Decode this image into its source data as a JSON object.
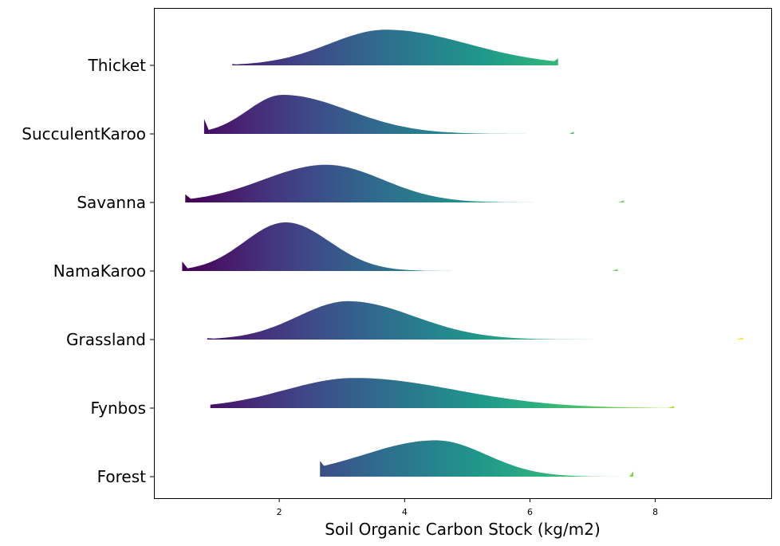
{
  "chart_data": {
    "type": "ridgeline",
    "xlabel": "Soil Organic Carbon Stock (kg/m2)",
    "ylabel": "",
    "title": "",
    "xlim": [
      0.0,
      9.85
    ],
    "xticks": [
      2,
      4,
      6,
      8
    ],
    "grid": false,
    "colormap": "viridis",
    "color_range": [
      0.5,
      9.4
    ],
    "series": [
      {
        "name": "Thicket",
        "x_range": [
          1.25,
          6.45
        ],
        "peak": 3.7,
        "sigma_left": 0.9,
        "sigma_right": 1.3,
        "peak_height": 0.52,
        "x_end_height": 0.1
      },
      {
        "name": "SucculentKaroo",
        "x_range": [
          0.8,
          6.7
        ],
        "peak": 2.05,
        "sigma_left": 0.55,
        "sigma_right": 1.05,
        "peak_height": 0.57,
        "x_start_height": 0.22
      },
      {
        "name": "Savanna",
        "x_range": [
          0.5,
          7.5
        ],
        "peak": 2.75,
        "sigma_left": 1.0,
        "sigma_right": 0.9,
        "peak_height": 0.55,
        "x_start_height": 0.12
      },
      {
        "name": "NamaKaroo",
        "x_range": [
          0.45,
          7.4
        ],
        "peak": 2.1,
        "sigma_left": 0.65,
        "sigma_right": 0.7,
        "peak_height": 0.71,
        "x_start_height": 0.14
      },
      {
        "name": "Grassland",
        "x_range": [
          0.85,
          9.4
        ],
        "peak": 3.1,
        "sigma_left": 0.8,
        "sigma_right": 1.05,
        "peak_height": 0.56
      },
      {
        "name": "Fynbos",
        "x_range": [
          0.9,
          8.3
        ],
        "peak": 3.2,
        "sigma_left": 1.1,
        "sigma_right": 1.6,
        "peak_height": 0.44
      },
      {
        "name": "Forest",
        "x_range": [
          2.65,
          7.65
        ],
        "peak": 4.5,
        "sigma_left": 1.15,
        "sigma_right": 0.8,
        "peak_height": 0.53,
        "x_start_height": 0.23,
        "x_end_height": 0.08
      }
    ]
  }
}
